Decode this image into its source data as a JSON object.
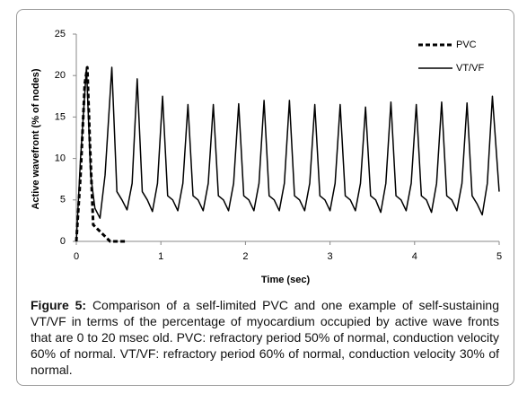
{
  "chart_data": {
    "type": "line",
    "xlabel": "Time (sec)",
    "ylabel": "Active wavefront (% of nodes)",
    "xlim": [
      0,
      5
    ],
    "xticks": [
      0,
      1,
      2,
      3,
      4,
      5
    ],
    "ylim": [
      0,
      25
    ],
    "yticks": [
      0,
      5,
      10,
      15,
      20,
      25
    ],
    "grid": false,
    "legend": "upper right",
    "series": [
      {
        "name": "PVC",
        "color": "#000000",
        "line_style": "dashed",
        "x": [
          0,
          0.05,
          0.1,
          0.13,
          0.16,
          0.2,
          0.25,
          0.3,
          0.35,
          0.4,
          0.5,
          0.6
        ],
        "values": [
          0,
          8,
          19,
          21,
          12,
          2,
          1.5,
          1,
          0.5,
          0,
          0,
          0
        ]
      },
      {
        "name": "VT/VF",
        "color": "#000000",
        "line_style": "solid",
        "x": [
          0,
          0.05,
          0.12,
          0.17,
          0.22,
          0.28,
          0.34,
          0.42,
          0.48,
          0.54,
          0.6,
          0.66,
          0.72,
          0.78,
          0.84,
          0.9,
          0.96,
          1.02,
          1.08,
          1.14,
          1.2,
          1.26,
          1.32,
          1.38,
          1.44,
          1.5,
          1.56,
          1.62,
          1.68,
          1.74,
          1.8,
          1.86,
          1.92,
          1.98,
          2.04,
          2.1,
          2.16,
          2.22,
          2.28,
          2.34,
          2.4,
          2.46,
          2.52,
          2.58,
          2.64,
          2.7,
          2.76,
          2.82,
          2.88,
          2.94,
          3,
          3.06,
          3.12,
          3.18,
          3.24,
          3.3,
          3.36,
          3.42,
          3.48,
          3.54,
          3.6,
          3.66,
          3.72,
          3.78,
          3.84,
          3.9,
          3.96,
          4.02,
          4.08,
          4.14,
          4.2,
          4.26,
          4.32,
          4.38,
          4.44,
          4.5,
          4.56,
          4.62,
          4.68,
          4.74,
          4.8,
          4.86,
          4.92,
          5
        ],
        "values": [
          0,
          10,
          21,
          8,
          4,
          2.8,
          8,
          21,
          6,
          5,
          3.8,
          7,
          19.6,
          6,
          5,
          3.6,
          7,
          17.5,
          5.5,
          5,
          3.7,
          7,
          16.5,
          5.5,
          5,
          3.7,
          7,
          16.5,
          5.5,
          5,
          3.7,
          7,
          16.6,
          5.5,
          5,
          3.7,
          7,
          17,
          5.5,
          5,
          3.7,
          7,
          17,
          5.5,
          5,
          3.7,
          7,
          16.5,
          5.5,
          5,
          3.7,
          7,
          16.5,
          5.5,
          5,
          3.7,
          7,
          16.2,
          5.5,
          5,
          3.5,
          7,
          16.8,
          5.5,
          5,
          3.7,
          7,
          16.5,
          5.5,
          5,
          3.5,
          7,
          16.8,
          5.5,
          5,
          3.7,
          7,
          16.7,
          5.5,
          4.5,
          3.2,
          7,
          17.5,
          6
        ]
      }
    ]
  },
  "caption": {
    "label": "Figure 5:",
    "text": "Comparison of a self-limited PVC and one example of self-sustaining VT/VF in terms of the percentage of myocardium occupied by active wave fronts that are 0 to 20 msec old. PVC: refractory period 50% of normal, conduction velocity 60% of normal. VT/VF: refractory period 60% of normal, conduction velocity 30% of normal."
  }
}
